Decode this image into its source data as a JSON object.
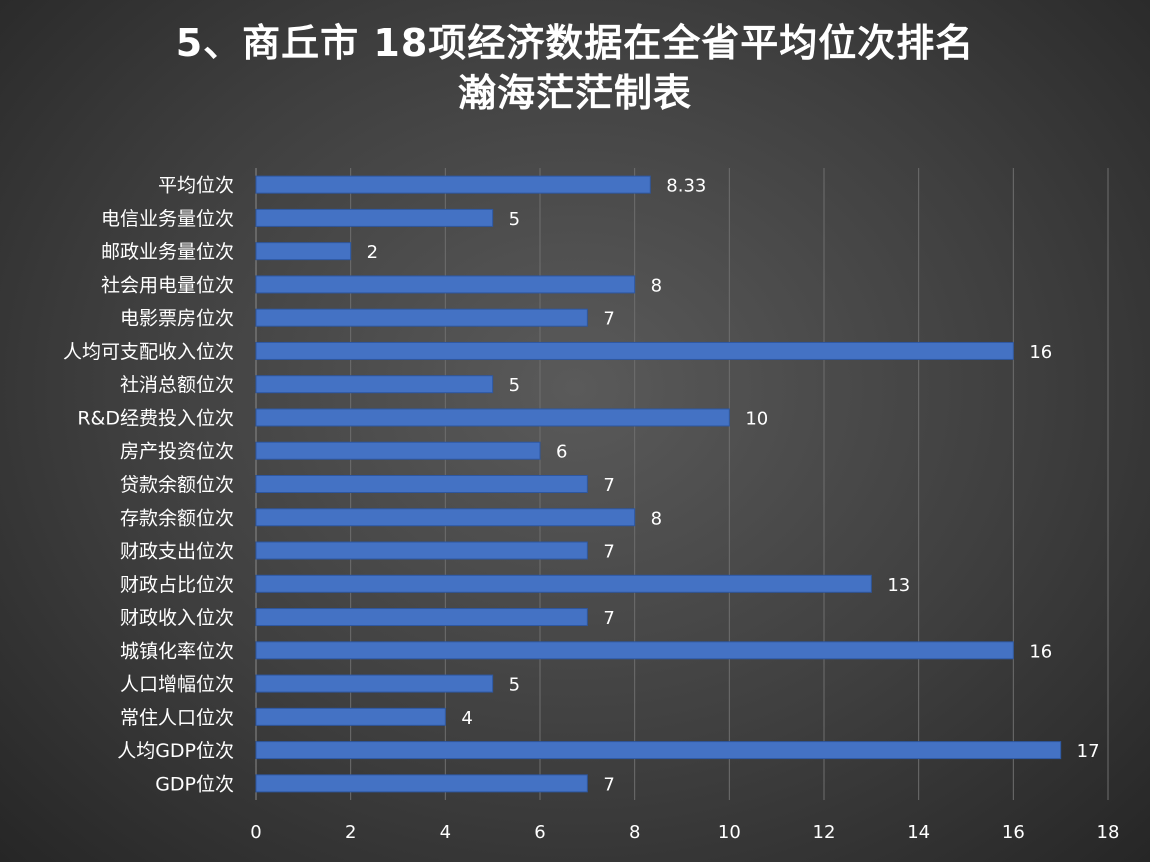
{
  "chart_data": {
    "type": "bar",
    "orientation": "horizontal",
    "title": "5、商丘市 18项经济数据在全省平均位次排名",
    "subtitle": "瀚海茫茫制表",
    "xlabel": "",
    "ylabel": "",
    "xlim": [
      0,
      18
    ],
    "xticks": [
      0,
      2,
      4,
      6,
      8,
      10,
      12,
      14,
      16,
      18
    ],
    "grid": true,
    "legend": "none",
    "bar_color": "#4472c4",
    "categories": [
      "平均位次",
      "电信业务量位次",
      "邮政业务量位次",
      "社会用电量位次",
      "电影票房位次",
      "人均可支配收入位次",
      "社消总额位次",
      "R&D经费投入位次",
      "房产投资位次",
      "贷款余额位次",
      "存款余额位次",
      "财政支出位次",
      "财政占比位次",
      "财政收入位次",
      "城镇化率位次",
      "人口增幅位次",
      "常住人口位次",
      "人均GDP位次",
      "GDP位次"
    ],
    "values": [
      8.33,
      5,
      2,
      8,
      7,
      16,
      5,
      10,
      6,
      7,
      8,
      7,
      13,
      7,
      16,
      5,
      4,
      17,
      7
    ],
    "value_labels": [
      "8.33",
      "5",
      "2",
      "8",
      "7",
      "16",
      "5",
      "10",
      "6",
      "7",
      "8",
      "7",
      "13",
      "7",
      "16",
      "5",
      "4",
      "17",
      "7"
    ]
  }
}
